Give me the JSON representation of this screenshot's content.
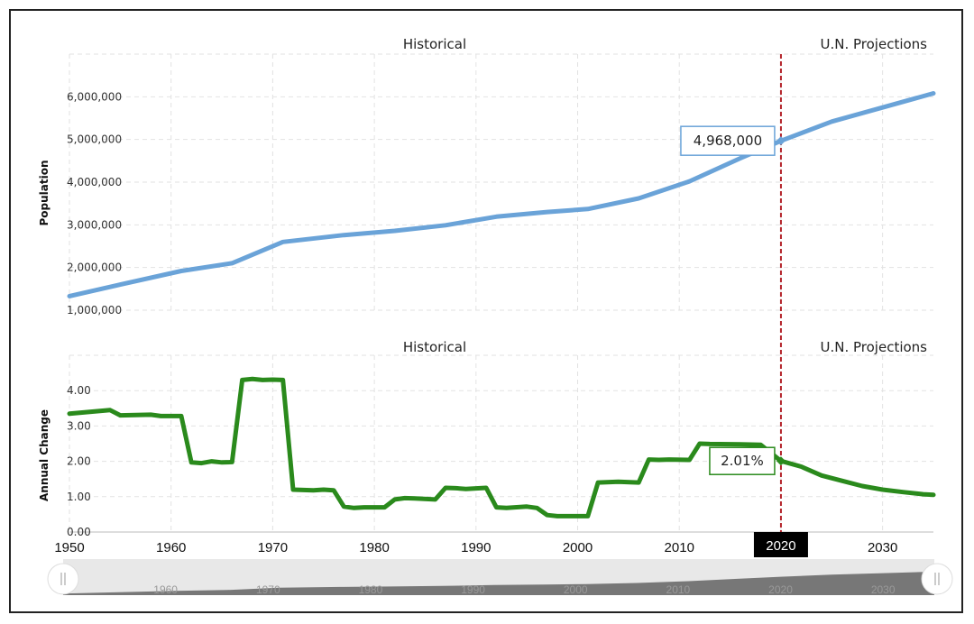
{
  "sections": {
    "historical": "Historical",
    "projections": "U.N. Projections"
  },
  "marker_year_label": "2020",
  "callouts": {
    "population": "4,968,000",
    "change": "2.01%"
  },
  "chart_data": [
    {
      "type": "line",
      "ylabel": "Population",
      "xlim": [
        1950,
        2035
      ],
      "ylim": [
        1000000,
        7000000
      ],
      "yticks": [
        1000000,
        2000000,
        3000000,
        4000000,
        5000000,
        6000000
      ],
      "ytick_labels": [
        "1,000,000",
        "2,000,000",
        "3,000,000",
        "4,000,000",
        "5,000,000",
        "6,000,000"
      ],
      "color": "#6aa3d8",
      "series": [
        {
          "x": [
            1950,
            1955,
            1961,
            1966,
            1971,
            1977,
            1982,
            1987,
            1992,
            1997,
            2001,
            2006,
            2011,
            2016,
            2020,
            2025,
            2030,
            2035
          ],
          "y": [
            1330000,
            1600000,
            1920000,
            2100000,
            2600000,
            2760000,
            2860000,
            2990000,
            3190000,
            3300000,
            3370000,
            3620000,
            4020000,
            4560000,
            4968000,
            5420000,
            5750000,
            6080000
          ]
        }
      ],
      "highlight": {
        "x": 2020,
        "y": 4968000
      }
    },
    {
      "type": "line",
      "ylabel": "Annual Change",
      "xlim": [
        1950,
        2035
      ],
      "ylim": [
        0,
        5
      ],
      "yticks": [
        0,
        1,
        2,
        3,
        4
      ],
      "ytick_labels": [
        "0.00",
        "1.00",
        "2.00",
        "3.00",
        "4.00"
      ],
      "xticks": [
        1950,
        1960,
        1970,
        1980,
        1990,
        2000,
        2010,
        2020,
        2030
      ],
      "color": "#2a8a1c",
      "series": [
        {
          "x": [
            1950,
            1952,
            1954,
            1955,
            1958,
            1959,
            1961,
            1962,
            1963,
            1964,
            1965,
            1966,
            1967,
            1968,
            1969,
            1970,
            1971,
            1972,
            1974,
            1975,
            1976,
            1977,
            1978,
            1979,
            1981,
            1982,
            1983,
            1984,
            1986,
            1987,
            1988,
            1989,
            1991,
            1992,
            1993,
            1995,
            1996,
            1997,
            1998,
            2000,
            2001,
            2002,
            2004,
            2006,
            2007,
            2008,
            2009,
            2011,
            2012,
            2013,
            2016,
            2018,
            2020,
            2022,
            2024,
            2026,
            2028,
            2030,
            2032,
            2034,
            2035
          ],
          "y": [
            3.35,
            3.4,
            3.45,
            3.3,
            3.32,
            3.28,
            3.28,
            1.97,
            1.95,
            2.0,
            1.97,
            1.98,
            4.3,
            4.33,
            4.3,
            4.31,
            4.3,
            1.2,
            1.18,
            1.2,
            1.18,
            0.72,
            0.68,
            0.7,
            0.7,
            0.92,
            0.96,
            0.95,
            0.92,
            1.25,
            1.24,
            1.22,
            1.25,
            0.7,
            0.68,
            0.72,
            0.68,
            0.48,
            0.45,
            0.45,
            0.45,
            1.4,
            1.42,
            1.4,
            2.05,
            2.04,
            2.05,
            2.04,
            2.5,
            2.49,
            2.48,
            2.47,
            2.01,
            1.85,
            1.6,
            1.45,
            1.3,
            1.2,
            1.13,
            1.07,
            1.05
          ]
        }
      ],
      "highlight": {
        "x": 2020,
        "y": 2.01
      }
    }
  ]
}
